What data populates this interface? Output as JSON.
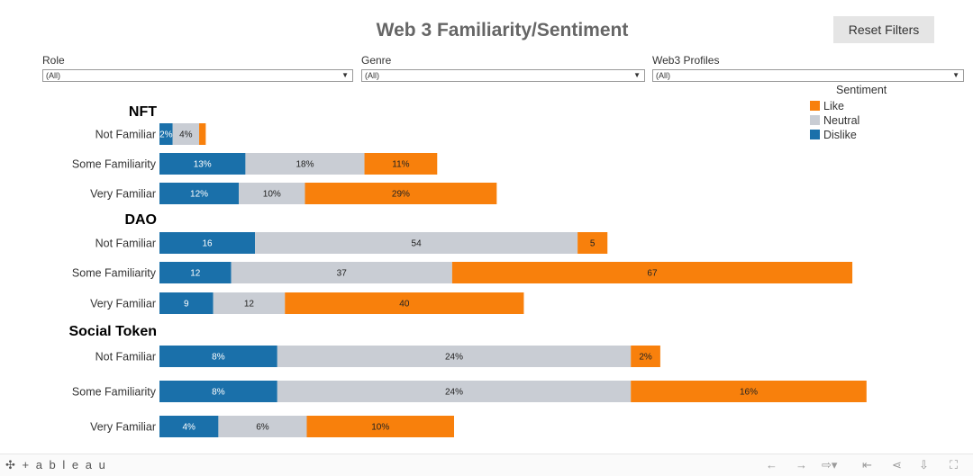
{
  "title": "Web 3 Familiarity/Sentiment",
  "reset_label": "Reset Filters",
  "filters": [
    {
      "label": "Role",
      "value": "(All)"
    },
    {
      "label": "Genre",
      "value": "(All)"
    },
    {
      "label": "Web3 Profiles",
      "value": "(All)"
    }
  ],
  "legend": {
    "title": "Sentiment",
    "items": [
      {
        "label": "Like",
        "color": "#f8800c"
      },
      {
        "label": "Neutral",
        "color": "#c9cdd4"
      },
      {
        "label": "Dislike",
        "color": "#1a70aa"
      }
    ]
  },
  "logo": "+ a b l e a u",
  "chart_data": [
    {
      "type": "bar",
      "title": "NFT",
      "categories": [
        "Not Familiar",
        "Some Familiarity",
        "Very Familiar"
      ],
      "series": [
        {
          "name": "Dislike",
          "values": [
            2,
            13,
            12
          ],
          "labels": [
            "2%",
            "13%",
            "12%"
          ]
        },
        {
          "name": "Neutral",
          "values": [
            4,
            18,
            10
          ],
          "labels": [
            "4%",
            "18%",
            "10%"
          ]
        },
        {
          "name": "Like",
          "values": [
            1,
            11,
            29
          ],
          "labels": [
            "",
            "11%",
            "29%"
          ]
        }
      ]
    },
    {
      "type": "bar",
      "title": "DAO",
      "categories": [
        "Not Familiar",
        "Some Familiarity",
        "Very Familiar"
      ],
      "series": [
        {
          "name": "Dislike",
          "values": [
            16,
            12,
            9
          ],
          "labels": [
            "16",
            "12",
            "9"
          ]
        },
        {
          "name": "Neutral",
          "values": [
            54,
            37,
            12
          ],
          "labels": [
            "54",
            "37",
            "12"
          ]
        },
        {
          "name": "Like",
          "values": [
            5,
            67,
            40
          ],
          "labels": [
            "5",
            "67",
            "40"
          ]
        }
      ]
    },
    {
      "type": "bar",
      "title": "Social Token",
      "categories": [
        "Not Familiar",
        "Some Familiarity",
        "Very Familiar"
      ],
      "series": [
        {
          "name": "Dislike",
          "values": [
            8,
            8,
            4
          ],
          "labels": [
            "8%",
            "8%",
            "4%"
          ]
        },
        {
          "name": "Neutral",
          "values": [
            24,
            24,
            6
          ],
          "labels": [
            "24%",
            "24%",
            "6%"
          ]
        },
        {
          "name": "Like",
          "values": [
            2,
            16,
            10
          ],
          "labels": [
            "2%",
            "16%",
            "10%"
          ]
        }
      ]
    }
  ]
}
